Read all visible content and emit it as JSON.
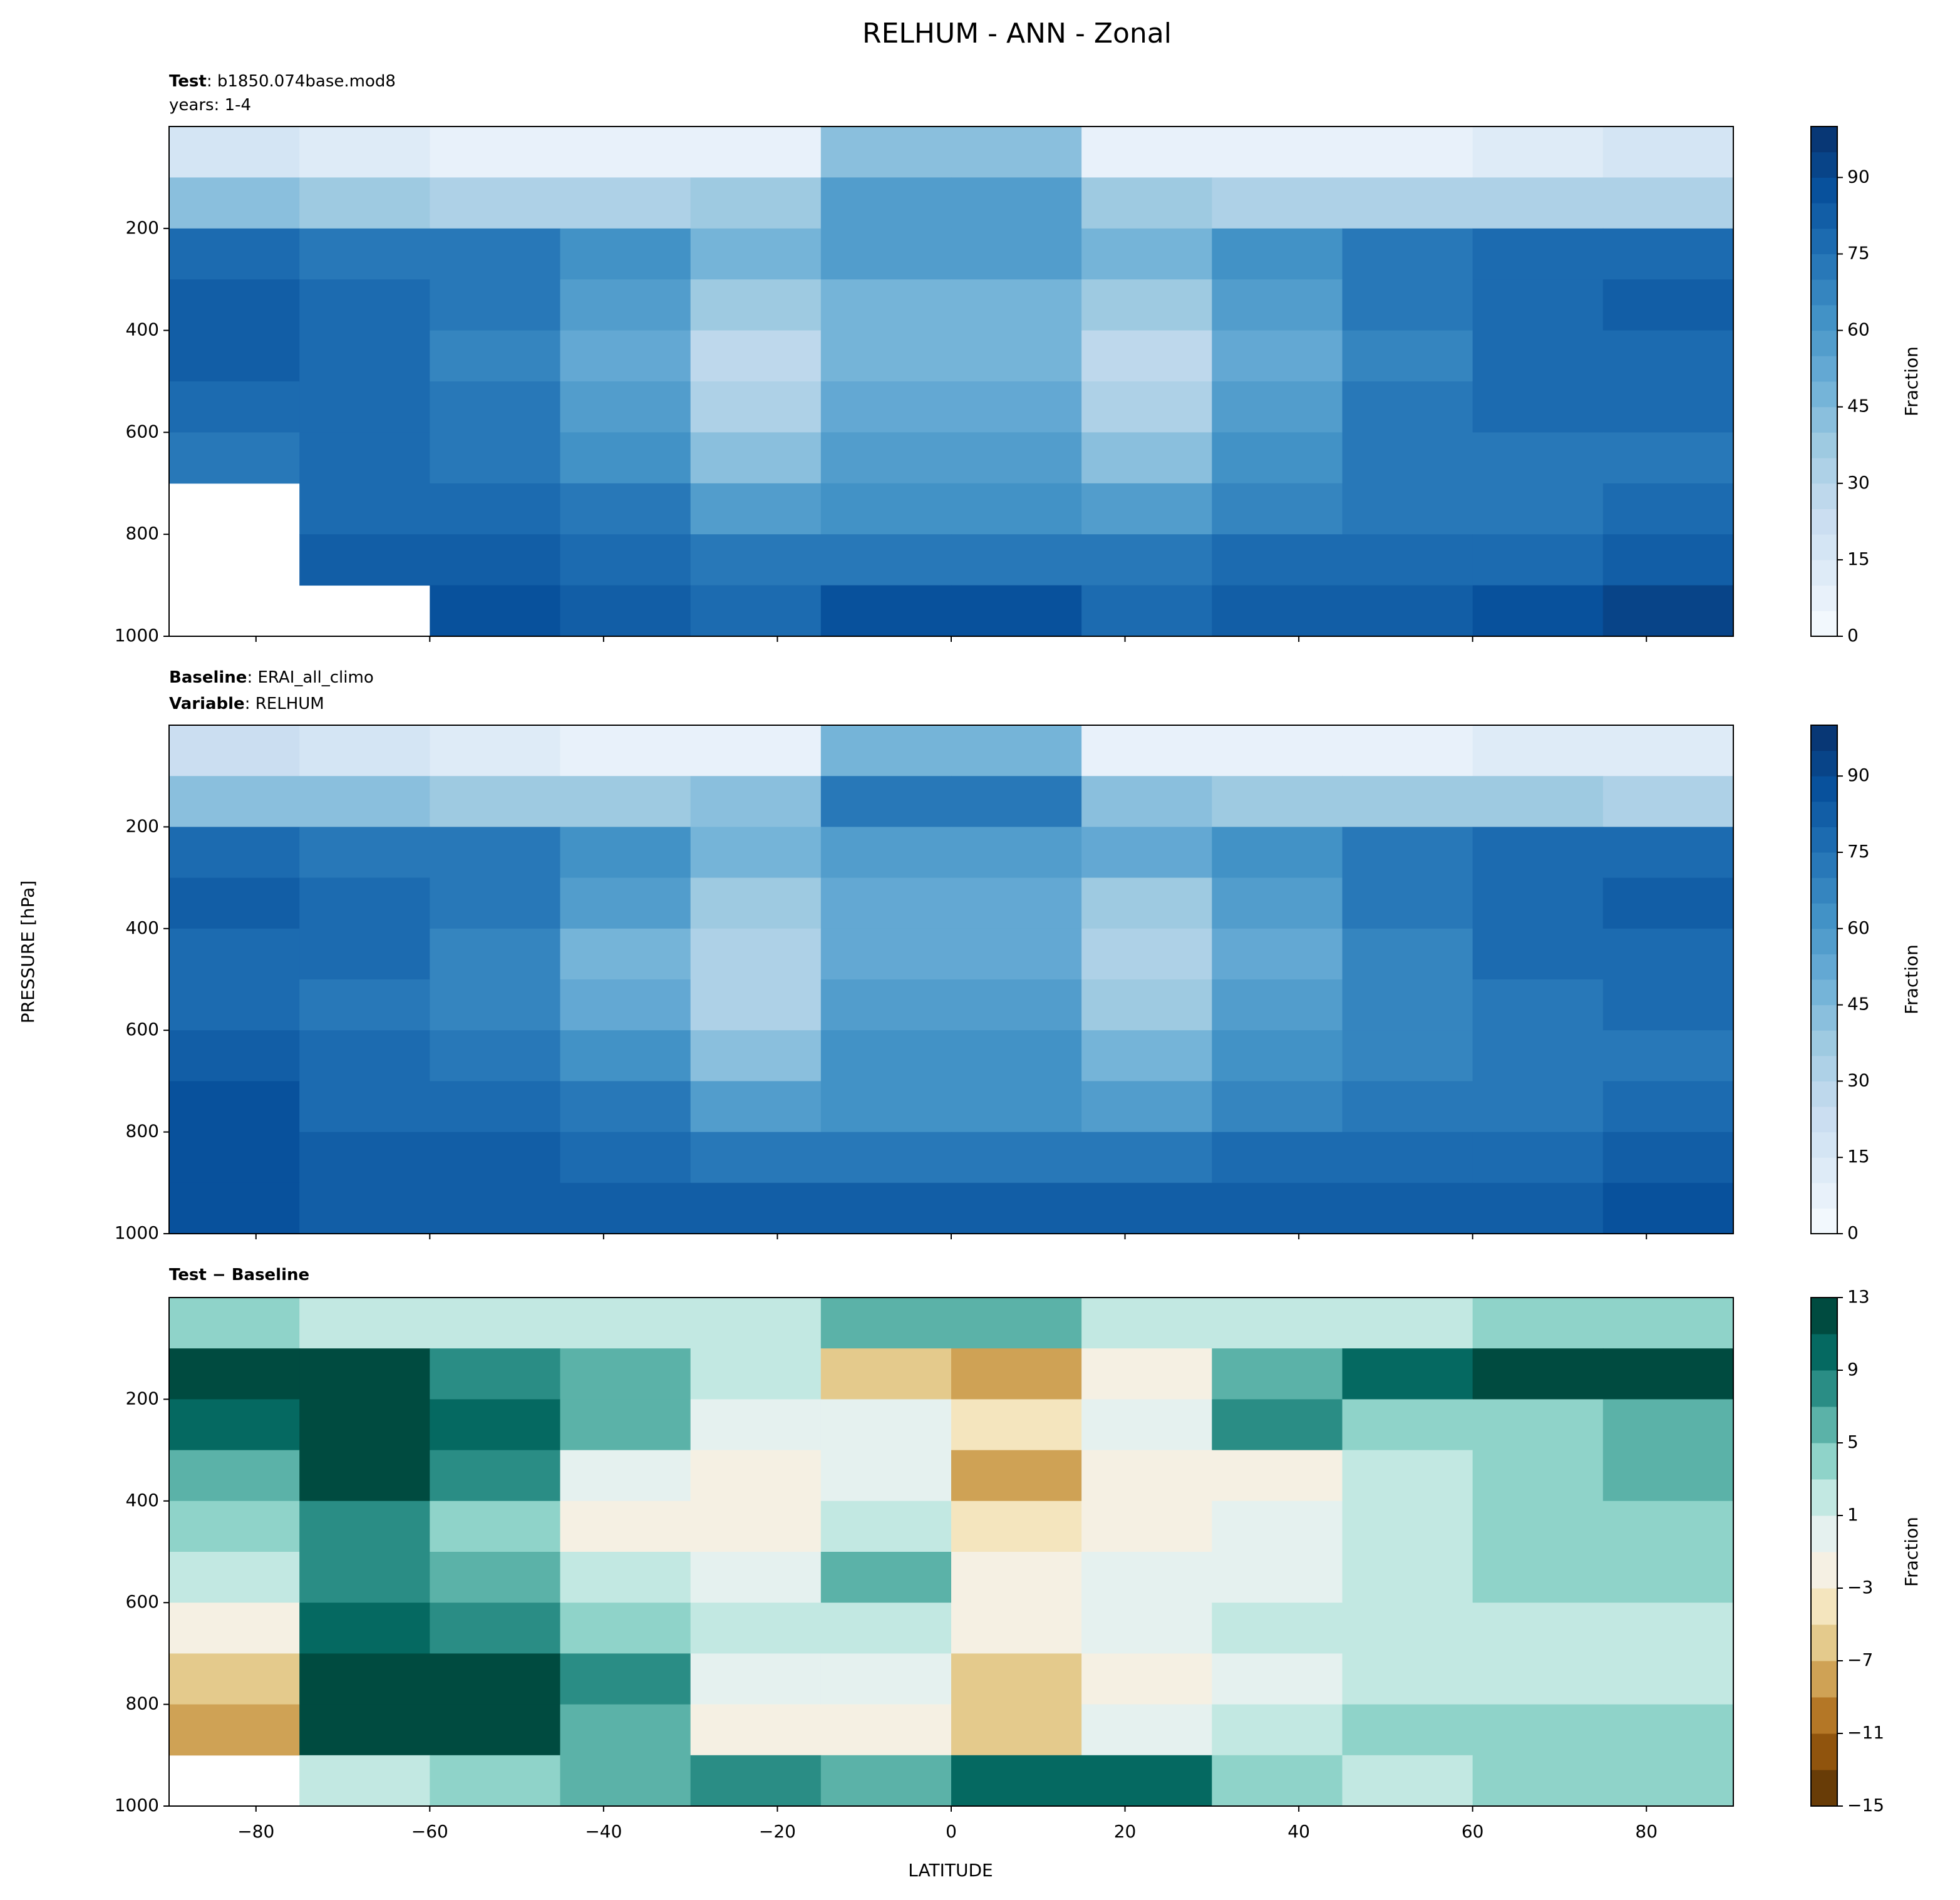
{
  "figure": {
    "title": "RELHUM - ANN - Zonal",
    "ylabel": "PRESSURE [hPa]",
    "xlabel": "LATITUDE"
  },
  "chart_data": [
    {
      "type": "contour",
      "header": [
        {
          "label": "Test",
          "text": ": b1850.074base.mod8"
        },
        {
          "text": "years: 1-4"
        }
      ],
      "xlim": [
        -90,
        90
      ],
      "xticks": [
        -80,
        -60,
        -40,
        -20,
        0,
        20,
        40,
        60,
        80
      ],
      "xtick_labels": false,
      "ylim": [
        1000,
        0
      ],
      "yticks": [
        200,
        400,
        600,
        800,
        1000
      ],
      "lat_edges": [
        -90,
        -75,
        -60,
        -45,
        -30,
        -15,
        0,
        15,
        30,
        45,
        60,
        75,
        90
      ],
      "lev_edges": [
        0,
        100,
        200,
        300,
        400,
        500,
        600,
        700,
        800,
        900,
        1000
      ],
      "values": [
        [
          15,
          10,
          5,
          5,
          5,
          40,
          40,
          5,
          5,
          5,
          10,
          15
        ],
        [
          40,
          35,
          30,
          30,
          35,
          55,
          55,
          35,
          30,
          30,
          30,
          30
        ],
        [
          75,
          72,
          70,
          60,
          45,
          55,
          55,
          45,
          60,
          70,
          75,
          78
        ],
        [
          80,
          75,
          70,
          55,
          35,
          45,
          45,
          35,
          55,
          70,
          75,
          80
        ],
        [
          80,
          75,
          65,
          50,
          25,
          45,
          45,
          25,
          50,
          65,
          75,
          78
        ],
        [
          75,
          75,
          70,
          55,
          30,
          50,
          50,
          30,
          55,
          70,
          75,
          75
        ],
        [
          72,
          75,
          72,
          60,
          40,
          55,
          55,
          40,
          60,
          70,
          72,
          72
        ],
        [
          null,
          78,
          75,
          70,
          55,
          60,
          60,
          55,
          65,
          72,
          72,
          75
        ],
        [
          null,
          82,
          82,
          78,
          72,
          72,
          72,
          70,
          75,
          78,
          78,
          80
        ],
        [
          null,
          null,
          85,
          82,
          78,
          85,
          85,
          78,
          80,
          82,
          85,
          90
        ]
      ],
      "colorbar": {
        "label": "Fraction",
        "levels": [
          0,
          5,
          10,
          15,
          20,
          25,
          30,
          35,
          40,
          45,
          50,
          55,
          60,
          65,
          70,
          75,
          80,
          85,
          90,
          95,
          100
        ],
        "ticks": [
          0,
          15,
          30,
          45,
          60,
          75,
          90
        ],
        "cmap": [
          "#f7fbff",
          "#deebf7",
          "#c6dbef",
          "#9ecae1",
          "#6baed6",
          "#4292c6",
          "#2171b5",
          "#08519c",
          "#08306b"
        ]
      }
    },
    {
      "type": "contour",
      "header": [
        {
          "label": "Baseline",
          "text": ": ERAI_all_climo"
        },
        {
          "label": "Variable",
          "text": ": RELHUM"
        }
      ],
      "xlim": [
        -90,
        90
      ],
      "xticks": [
        -80,
        -60,
        -40,
        -20,
        0,
        20,
        40,
        60,
        80
      ],
      "xtick_labels": false,
      "ylim": [
        1000,
        0
      ],
      "yticks": [
        200,
        400,
        600,
        800,
        1000
      ],
      "lat_edges": [
        -90,
        -75,
        -60,
        -45,
        -30,
        -15,
        0,
        15,
        30,
        45,
        60,
        75,
        90
      ],
      "lev_edges": [
        0,
        100,
        200,
        300,
        400,
        500,
        600,
        700,
        800,
        900,
        1000
      ],
      "values": [
        [
          20,
          15,
          10,
          5,
          5,
          45,
          45,
          5,
          5,
          5,
          10,
          10
        ],
        [
          40,
          40,
          35,
          35,
          40,
          70,
          70,
          40,
          35,
          35,
          35,
          30
        ],
        [
          75,
          72,
          70,
          60,
          45,
          55,
          55,
          50,
          60,
          70,
          75,
          78
        ],
        [
          80,
          75,
          70,
          55,
          35,
          50,
          50,
          35,
          55,
          70,
          75,
          80
        ],
        [
          78,
          75,
          65,
          45,
          30,
          50,
          50,
          30,
          50,
          65,
          75,
          78
        ],
        [
          78,
          72,
          68,
          50,
          30,
          55,
          55,
          35,
          55,
          65,
          72,
          75
        ],
        [
          82,
          75,
          70,
          60,
          40,
          60,
          60,
          45,
          60,
          68,
          72,
          72
        ],
        [
          88,
          78,
          75,
          70,
          55,
          62,
          62,
          58,
          65,
          72,
          72,
          75
        ],
        [
          88,
          80,
          80,
          78,
          72,
          72,
          72,
          70,
          75,
          78,
          78,
          80
        ],
        [
          88,
          82,
          82,
          80,
          80,
          82,
          82,
          80,
          80,
          82,
          82,
          85
        ]
      ],
      "colorbar": {
        "label": "Fraction",
        "levels": [
          0,
          5,
          10,
          15,
          20,
          25,
          30,
          35,
          40,
          45,
          50,
          55,
          60,
          65,
          70,
          75,
          80,
          85,
          90,
          95,
          100
        ],
        "ticks": [
          0,
          15,
          30,
          45,
          60,
          75,
          90
        ],
        "cmap": [
          "#f7fbff",
          "#deebf7",
          "#c6dbef",
          "#9ecae1",
          "#6baed6",
          "#4292c6",
          "#2171b5",
          "#08519c",
          "#08306b"
        ]
      }
    },
    {
      "type": "contour",
      "header": [
        {
          "label": "Test − Baseline"
        }
      ],
      "xlim": [
        -90,
        90
      ],
      "xtick_labels": true,
      "xticks": [
        {
          "value": -80,
          "label": "−80"
        },
        {
          "value": -60,
          "label": "−60"
        },
        {
          "value": -40,
          "label": "−40"
        },
        {
          "value": -20,
          "label": "−20"
        },
        0,
        20,
        40,
        60,
        80
      ],
      "ylim": [
        1000,
        0
      ],
      "yticks": [
        200,
        400,
        600,
        800,
        1000
      ],
      "lat_edges": [
        -90,
        -75,
        -60,
        -45,
        -30,
        -15,
        0,
        15,
        30,
        45,
        60,
        75,
        90
      ],
      "lev_edges": [
        0,
        100,
        200,
        300,
        400,
        500,
        600,
        700,
        800,
        900,
        1000
      ],
      "values": [
        [
          3,
          1,
          1,
          1,
          1,
          5,
          5,
          1,
          1,
          1,
          3,
          3
        ],
        [
          11,
          11,
          7,
          5,
          1,
          -7,
          -9,
          -3,
          5,
          9,
          11,
          11
        ],
        [
          9,
          11,
          9,
          5,
          0,
          -1,
          -5,
          -1,
          7,
          3,
          3,
          5
        ],
        [
          5,
          11,
          7,
          -1,
          -3,
          -1,
          -9,
          -3,
          -3,
          1,
          3,
          5
        ],
        [
          3,
          7,
          3,
          -3,
          -3,
          1,
          -5,
          -3,
          -1,
          1,
          3,
          3
        ],
        [
          1,
          7,
          5,
          1,
          -1,
          5,
          -3,
          -1,
          -1,
          1,
          3,
          3
        ],
        [
          -3,
          9,
          7,
          3,
          1,
          1,
          -3,
          -1,
          1,
          1,
          1,
          1
        ],
        [
          -7,
          11,
          11,
          7,
          -1,
          -1,
          -7,
          -3,
          0,
          1,
          1,
          1
        ],
        [
          -9,
          13,
          13,
          5,
          -3,
          -3,
          -7,
          -1,
          1,
          3,
          3,
          3
        ],
        [
          null,
          1,
          3,
          5,
          7,
          5,
          9,
          9,
          3,
          1,
          3,
          3
        ]
      ],
      "colorbar": {
        "label": "Fraction",
        "levels": [
          -15,
          -13,
          -11,
          -9,
          -7,
          -5,
          -3,
          -1,
          1,
          3,
          5,
          7,
          9,
          11,
          13
        ],
        "ticks": [
          {
            "value": -15,
            "label": "−15"
          },
          {
            "value": -11,
            "label": "−11"
          },
          {
            "value": -7,
            "label": "−7"
          },
          {
            "value": -3,
            "label": "−3"
          },
          1,
          5,
          9,
          13
        ],
        "cmap": [
          "#543005",
          "#8c510a",
          "#bf812d",
          "#dfc27d",
          "#f6e8c3",
          "#f5f5f5",
          "#c7eae5",
          "#80cdc1",
          "#35978f",
          "#01665e",
          "#003c30"
        ]
      }
    }
  ]
}
